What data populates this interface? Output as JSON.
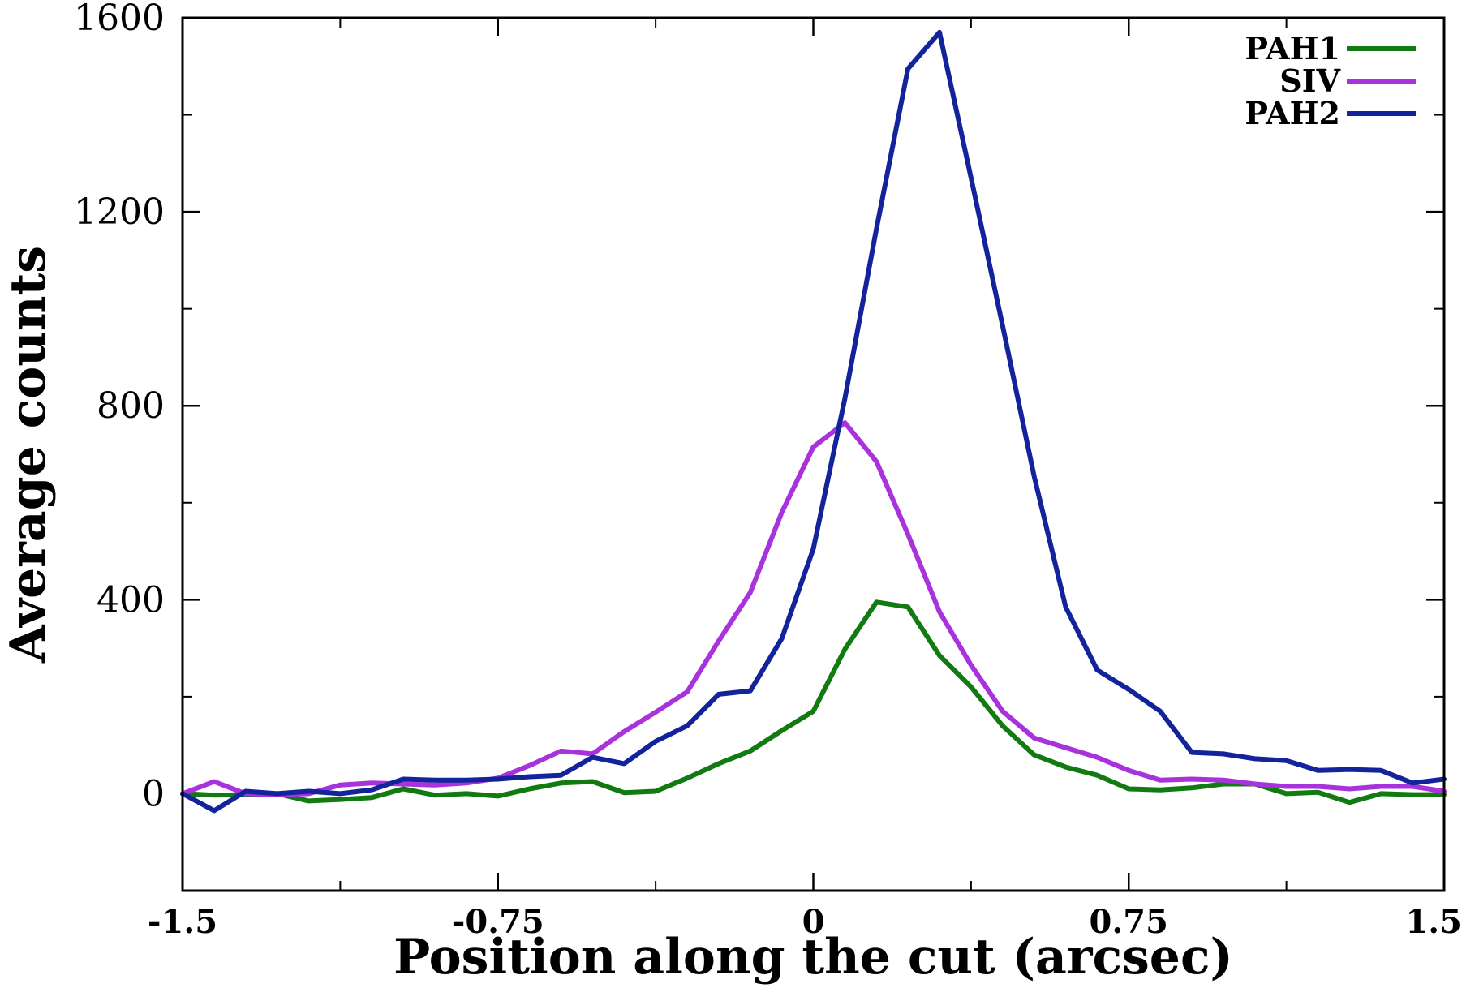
{
  "chart_data": {
    "type": "line",
    "title": "",
    "xlabel": "Position along the cut (arcsec)",
    "ylabel": "Average counts",
    "xlim": [
      -1.5,
      1.5
    ],
    "ylim": [
      -200,
      1600
    ],
    "x_ticks": [
      -1.5,
      -0.75,
      0,
      0.75,
      1.5
    ],
    "x_tick_labels": [
      "-1.5",
      "-0.75",
      "0",
      "0.75",
      "1.5"
    ],
    "x_minor_ticks": [
      -1.125,
      -0.375,
      0.375,
      1.125
    ],
    "y_ticks": [
      0,
      400,
      800,
      1200,
      1600
    ],
    "y_tick_labels": [
      "0",
      "400",
      "800",
      "1200",
      "1600"
    ],
    "y_minor_ticks": [
      -200,
      200,
      600,
      1000,
      1400
    ],
    "grid": false,
    "legend_position": "top-right",
    "x": [
      -1.5,
      -1.425,
      -1.35,
      -1.275,
      -1.2,
      -1.125,
      -1.05,
      -0.975,
      -0.9,
      -0.825,
      -0.75,
      -0.675,
      -0.6,
      -0.525,
      -0.45,
      -0.375,
      -0.3,
      -0.225,
      -0.15,
      -0.075,
      0,
      0.075,
      0.15,
      0.225,
      0.3,
      0.375,
      0.45,
      0.525,
      0.6,
      0.675,
      0.75,
      0.825,
      0.9,
      0.975,
      1.05,
      1.125,
      1.2,
      1.275,
      1.35,
      1.425,
      1.5
    ],
    "series": [
      {
        "name": "PAH1",
        "color": "#117a11",
        "values": [
          0,
          -3,
          -2,
          0,
          -15,
          -12,
          -8,
          10,
          -3,
          0,
          -5,
          10,
          22,
          25,
          2,
          5,
          32,
          62,
          88,
          130,
          170,
          298,
          395,
          385,
          285,
          220,
          140,
          80,
          55,
          38,
          10,
          8,
          12,
          20,
          20,
          0,
          3,
          -18,
          0,
          -2,
          -2
        ]
      },
      {
        "name": "SIV",
        "color": "#a833dc",
        "values": [
          0,
          25,
          0,
          -2,
          0,
          18,
          22,
          20,
          18,
          22,
          32,
          58,
          88,
          82,
          128,
          168,
          210,
          315,
          415,
          580,
          715,
          765,
          685,
          535,
          375,
          265,
          170,
          115,
          95,
          75,
          48,
          28,
          30,
          28,
          20,
          15,
          15,
          10,
          15,
          15,
          5
        ]
      },
      {
        "name": "PAH2",
        "color": "#13239c",
        "values": [
          0,
          -35,
          5,
          0,
          5,
          0,
          8,
          30,
          28,
          28,
          30,
          35,
          38,
          75,
          62,
          108,
          140,
          205,
          212,
          320,
          505,
          815,
          1165,
          1495,
          1570,
          1270,
          965,
          655,
          385,
          255,
          215,
          170,
          85,
          82,
          72,
          68,
          48,
          50,
          48,
          22,
          30
        ]
      }
    ]
  }
}
